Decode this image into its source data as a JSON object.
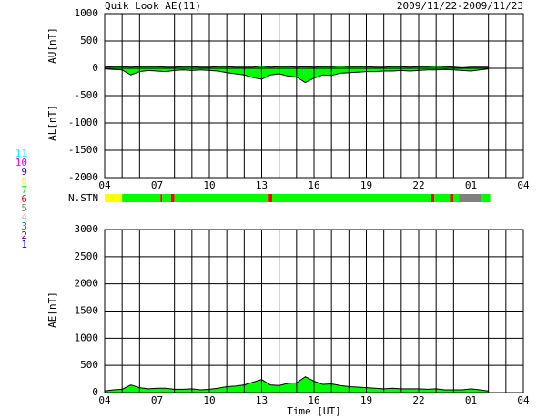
{
  "header": {
    "title": "Quik Look AE(11)",
    "date_range": "2009/11/22-2009/11/23"
  },
  "station_legend": {
    "counts": [
      11,
      10,
      9,
      8,
      7,
      6,
      5,
      4,
      3,
      2,
      1
    ],
    "colors": [
      "#00ffff",
      "#ff00ff",
      "#4000c0",
      "#ffff00",
      "#00ff00",
      "#ff0000",
      "#808080",
      "#c0c0c0",
      "#008080",
      "#800080",
      "#0000ff"
    ]
  },
  "station_count": {
    "label": "N.STN",
    "start": [
      4,
      5.0,
      7.2,
      7.3,
      7.8,
      8.0,
      13.4,
      13.6,
      22.7,
      22.9,
      23.8,
      24.0,
      24.3,
      25.6
    ],
    "end": [
      5.0,
      7.2,
      7.3,
      7.8,
      8.0,
      13.4,
      13.6,
      22.7,
      22.9,
      23.8,
      24.0,
      24.3,
      25.6,
      26.1
    ],
    "counts": [
      8,
      7,
      6,
      7,
      6,
      7,
      6,
      7,
      6,
      7,
      6,
      7,
      5,
      7
    ]
  },
  "chart_data": [
    {
      "type": "band",
      "y_labels": [
        "AU[nT]",
        "AL[nT]"
      ],
      "xlim": [
        4,
        28
      ],
      "ylim": [
        -2000,
        1000
      ],
      "xticks": [
        {
          "value": 4,
          "label": "04"
        },
        {
          "value": 7,
          "label": "07"
        },
        10,
        13,
        16,
        19,
        22,
        {
          "value": 25,
          "label": "01"
        },
        {
          "value": 28,
          "label": "04"
        }
      ],
      "xgrid": [
        4,
        5,
        6,
        7,
        8,
        9,
        10,
        11,
        12,
        13,
        14,
        15,
        16,
        17,
        18,
        19,
        20,
        21,
        22,
        23,
        24,
        25,
        26,
        27,
        28
      ],
      "yticks": [
        -2000,
        -1500,
        -1000,
        -500,
        0,
        500,
        1000
      ],
      "fill": "#00ff00",
      "x": [
        4,
        4.5,
        5,
        5.5,
        6,
        6.5,
        7,
        7.5,
        8,
        8.5,
        9,
        9.5,
        10,
        10.5,
        11,
        11.5,
        12,
        12.5,
        13,
        13.5,
        14,
        14.5,
        15,
        15.5,
        16,
        16.5,
        17,
        17.5,
        18,
        18.5,
        19,
        19.5,
        20,
        20.5,
        21,
        21.5,
        22,
        22.5,
        23,
        23.5,
        24,
        24.5,
        25,
        25.5,
        26
      ],
      "series": [
        {
          "name": "AU",
          "color": "#000000",
          "values": [
            20,
            30,
            30,
            20,
            30,
            30,
            30,
            20,
            20,
            30,
            30,
            20,
            20,
            30,
            30,
            20,
            20,
            20,
            40,
            20,
            30,
            30,
            20,
            30,
            20,
            30,
            30,
            40,
            30,
            30,
            30,
            20,
            20,
            30,
            30,
            20,
            30,
            30,
            40,
            30,
            20,
            10,
            20,
            20,
            20
          ]
        },
        {
          "name": "AL",
          "color": "#000000",
          "values": [
            -10,
            -20,
            -30,
            -120,
            -60,
            -40,
            -50,
            -60,
            -40,
            -30,
            -40,
            -30,
            -40,
            -50,
            -80,
            -100,
            -120,
            -170,
            -200,
            -120,
            -100,
            -140,
            -160,
            -260,
            -180,
            -120,
            -130,
            -90,
            -80,
            -70,
            -60,
            -60,
            -50,
            -50,
            -40,
            -50,
            -40,
            -30,
            -30,
            -20,
            -30,
            -40,
            -50,
            -30,
            -10
          ]
        }
      ]
    },
    {
      "type": "area",
      "y_labels": [
        "AE[nT]"
      ],
      "xlabel": "Time [UT]",
      "xlim": [
        4,
        28
      ],
      "ylim": [
        0,
        3000
      ],
      "xticks": [
        {
          "value": 4,
          "label": "04"
        },
        {
          "value": 7,
          "label": "07"
        },
        10,
        13,
        16,
        19,
        22,
        {
          "value": 25,
          "label": "01"
        },
        {
          "value": 28,
          "label": "04"
        }
      ],
      "xgrid": [
        4,
        5,
        6,
        7,
        8,
        9,
        10,
        11,
        12,
        13,
        14,
        15,
        16,
        17,
        18,
        19,
        20,
        21,
        22,
        23,
        24,
        25,
        26,
        27,
        28
      ],
      "yticks": [
        0,
        500,
        1000,
        1500,
        2000,
        2500,
        3000
      ],
      "fill": "#00ff00",
      "x": [
        4,
        4.5,
        5,
        5.5,
        6,
        6.5,
        7,
        7.5,
        8,
        8.5,
        9,
        9.5,
        10,
        10.5,
        11,
        11.5,
        12,
        12.5,
        13,
        13.5,
        14,
        14.5,
        15,
        15.5,
        16,
        16.5,
        17,
        17.5,
        18,
        18.5,
        19,
        19.5,
        20,
        20.5,
        21,
        21.5,
        22,
        22.5,
        23,
        23.5,
        24,
        24.5,
        25,
        25.5,
        26
      ],
      "series": [
        {
          "name": "AE",
          "color": "#000000",
          "values": [
            30,
            50,
            60,
            140,
            90,
            70,
            80,
            80,
            60,
            60,
            70,
            50,
            60,
            80,
            110,
            120,
            140,
            190,
            240,
            140,
            130,
            170,
            180,
            290,
            210,
            150,
            160,
            130,
            110,
            100,
            90,
            80,
            70,
            80,
            70,
            70,
            70,
            60,
            70,
            50,
            50,
            50,
            70,
            50,
            30
          ]
        }
      ]
    }
  ]
}
